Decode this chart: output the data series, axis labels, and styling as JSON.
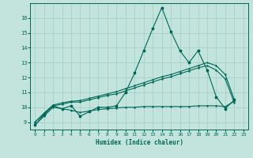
{
  "xlabel": "Humidex (Indice chaleur)",
  "xlim": [
    -0.5,
    23.5
  ],
  "ylim": [
    8.5,
    17.0
  ],
  "yticks": [
    9,
    10,
    11,
    12,
    13,
    14,
    15,
    16
  ],
  "xticks": [
    0,
    1,
    2,
    3,
    4,
    5,
    6,
    7,
    8,
    9,
    10,
    11,
    12,
    13,
    14,
    15,
    16,
    17,
    18,
    19,
    20,
    21,
    22,
    23
  ],
  "background_color": "#c2e4dc",
  "grid_color": "#a0ccc4",
  "line_color": "#006858",
  "series": {
    "main": [
      8.8,
      9.5,
      10.1,
      9.9,
      10.1,
      9.4,
      9.7,
      10.0,
      10.0,
      10.1,
      11.0,
      12.3,
      13.8,
      15.3,
      16.7,
      15.1,
      13.8,
      13.0,
      13.8,
      12.5,
      10.7,
      9.9,
      10.5
    ],
    "upper1": [
      9.0,
      9.6,
      10.15,
      10.3,
      10.4,
      10.45,
      10.6,
      10.75,
      10.9,
      11.05,
      11.25,
      11.45,
      11.65,
      11.85,
      12.05,
      12.2,
      12.4,
      12.6,
      12.8,
      13.0,
      12.8,
      12.2,
      10.5
    ],
    "upper2": [
      9.0,
      9.55,
      10.1,
      10.2,
      10.35,
      10.35,
      10.5,
      10.65,
      10.8,
      10.9,
      11.1,
      11.3,
      11.5,
      11.7,
      11.9,
      12.05,
      12.25,
      12.45,
      12.65,
      12.8,
      12.5,
      11.9,
      10.3
    ],
    "lower": [
      8.8,
      9.4,
      10.0,
      9.9,
      9.8,
      9.65,
      9.75,
      9.85,
      9.9,
      9.95,
      10.0,
      10.0,
      10.05,
      10.05,
      10.05,
      10.05,
      10.05,
      10.05,
      10.1,
      10.1,
      10.1,
      10.05,
      10.4
    ]
  }
}
